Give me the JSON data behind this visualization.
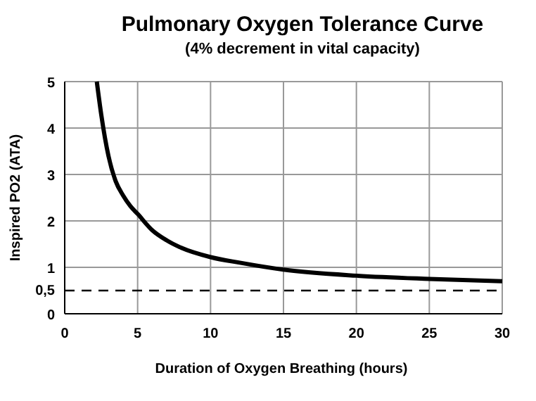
{
  "chart_data": {
    "type": "line",
    "title": "Pulmonary Oxygen Tolerance Curve",
    "subtitle": "(4% decrement in vital capacity)",
    "xlabel": "Duration of Oxygen Breathing (hours)",
    "ylabel": "Inspired PO2  (ATA)",
    "x": [
      2.2,
      2.5,
      3,
      3.5,
      4,
      4.5,
      5,
      6,
      7,
      8,
      10,
      12,
      15,
      20,
      25,
      30
    ],
    "series": [
      {
        "color": "#000000",
        "values": [
          5,
          4.3,
          3.4,
          2.85,
          2.55,
          2.32,
          2.15,
          1.8,
          1.58,
          1.42,
          1.22,
          1.1,
          0.95,
          0.82,
          0.75,
          0.7
        ]
      }
    ],
    "xlim": [
      0,
      30
    ],
    "xticks": [
      0,
      5,
      10,
      15,
      20,
      25,
      30
    ],
    "ylim": [
      0,
      5
    ],
    "yticks": [
      0,
      {
        "value": 0.5,
        "label": "0,5"
      },
      1,
      2,
      3,
      4,
      5
    ],
    "grid": true,
    "line_style": "solid",
    "ref_lines": [
      {
        "axis": "y",
        "value": 0.5,
        "line_style": "dashed",
        "color": "#000000"
      }
    ]
  }
}
